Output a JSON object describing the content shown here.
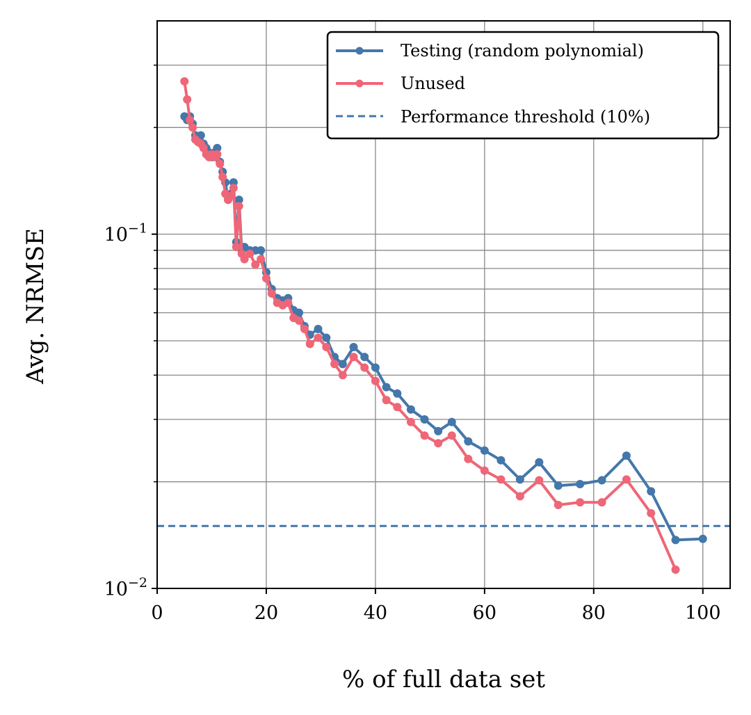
{
  "chart_data": {
    "type": "line",
    "title": "",
    "xlabel": "% of full data set",
    "ylabel": "Avg. NRMSE",
    "xscale": "linear",
    "yscale": "log",
    "xlim": [
      0,
      105
    ],
    "ylim": [
      0.01,
      0.4
    ],
    "grid": true,
    "legend_position": "top-right",
    "x_ticks": [
      {
        "value": 0,
        "label": "0"
      },
      {
        "value": 20,
        "label": "20"
      },
      {
        "value": 40,
        "label": "40"
      },
      {
        "value": 60,
        "label": "60"
      },
      {
        "value": 80,
        "label": "80"
      },
      {
        "value": 100,
        "label": "100"
      }
    ],
    "y_ticks": [
      {
        "value": 0.01,
        "base": "10",
        "exp": "−2"
      },
      {
        "value": 0.1,
        "base": "10",
        "exp": "−1"
      }
    ],
    "series": [
      {
        "name": "Testing (random polynomial)",
        "color": "#4477aa",
        "marker": "circle",
        "x": [
          5,
          5.5,
          6,
          6.5,
          7,
          7.5,
          8,
          8.5,
          9,
          9.5,
          10,
          10.5,
          11,
          11.5,
          12,
          12.5,
          13,
          13.5,
          14,
          14.5,
          15,
          15.5,
          16,
          17,
          18,
          19,
          20,
          21,
          22,
          23,
          24,
          25,
          26,
          27,
          28,
          29.5,
          31,
          32.5,
          34,
          36,
          38,
          40,
          42,
          44,
          46.5,
          49,
          51.5,
          54,
          57,
          60,
          63,
          66.5,
          70,
          73.5,
          77.5,
          81.5,
          86,
          90.5,
          95,
          100
        ],
        "y": [
          0.215,
          0.21,
          0.215,
          0.205,
          0.19,
          0.185,
          0.19,
          0.18,
          0.175,
          0.17,
          0.165,
          0.17,
          0.175,
          0.16,
          0.15,
          0.14,
          0.125,
          0.13,
          0.14,
          0.095,
          0.125,
          0.09,
          0.092,
          0.09,
          0.09,
          0.09,
          0.078,
          0.07,
          0.066,
          0.065,
          0.066,
          0.061,
          0.06,
          0.055,
          0.052,
          0.054,
          0.051,
          0.045,
          0.043,
          0.048,
          0.045,
          0.042,
          0.037,
          0.0355,
          0.032,
          0.03,
          0.0278,
          0.0295,
          0.026,
          0.0245,
          0.023,
          0.0203,
          0.0227,
          0.0195,
          0.0197,
          0.0202,
          0.0237,
          0.0188,
          0.0137,
          0.0138
        ]
      },
      {
        "name": "Unused",
        "color": "#ee6677",
        "marker": "circle",
        "x": [
          5,
          5.5,
          6,
          6.5,
          7,
          7.5,
          8,
          8.5,
          9,
          9.5,
          10,
          10.5,
          11,
          11.5,
          12,
          12.5,
          13,
          13.5,
          14,
          14.5,
          15,
          15.5,
          16,
          17,
          18,
          19,
          20,
          21,
          22,
          23,
          24,
          25,
          26,
          27,
          28,
          29.5,
          31,
          32.5,
          34,
          36,
          38,
          40,
          42,
          44,
          46.5,
          49,
          51.5,
          54,
          57,
          60,
          63,
          66.5,
          70,
          73.5,
          77.5,
          81.5,
          86,
          90.5,
          95
        ],
        "y": [
          0.27,
          0.24,
          0.21,
          0.2,
          0.185,
          0.182,
          0.18,
          0.175,
          0.168,
          0.165,
          0.168,
          0.165,
          0.168,
          0.158,
          0.145,
          0.13,
          0.125,
          0.128,
          0.135,
          0.092,
          0.12,
          0.088,
          0.085,
          0.088,
          0.082,
          0.085,
          0.075,
          0.068,
          0.064,
          0.063,
          0.064,
          0.058,
          0.057,
          0.054,
          0.049,
          0.051,
          0.048,
          0.043,
          0.04,
          0.045,
          0.042,
          0.0385,
          0.034,
          0.0325,
          0.0295,
          0.027,
          0.0257,
          0.027,
          0.0232,
          0.0215,
          0.0203,
          0.0182,
          0.0202,
          0.0172,
          0.0175,
          0.0175,
          0.0203,
          0.0163,
          0.0113
        ]
      }
    ],
    "threshold": {
      "name": "Performance threshold (10%)",
      "value": 0.015,
      "color": "#4477aa",
      "style": "dashed"
    }
  }
}
